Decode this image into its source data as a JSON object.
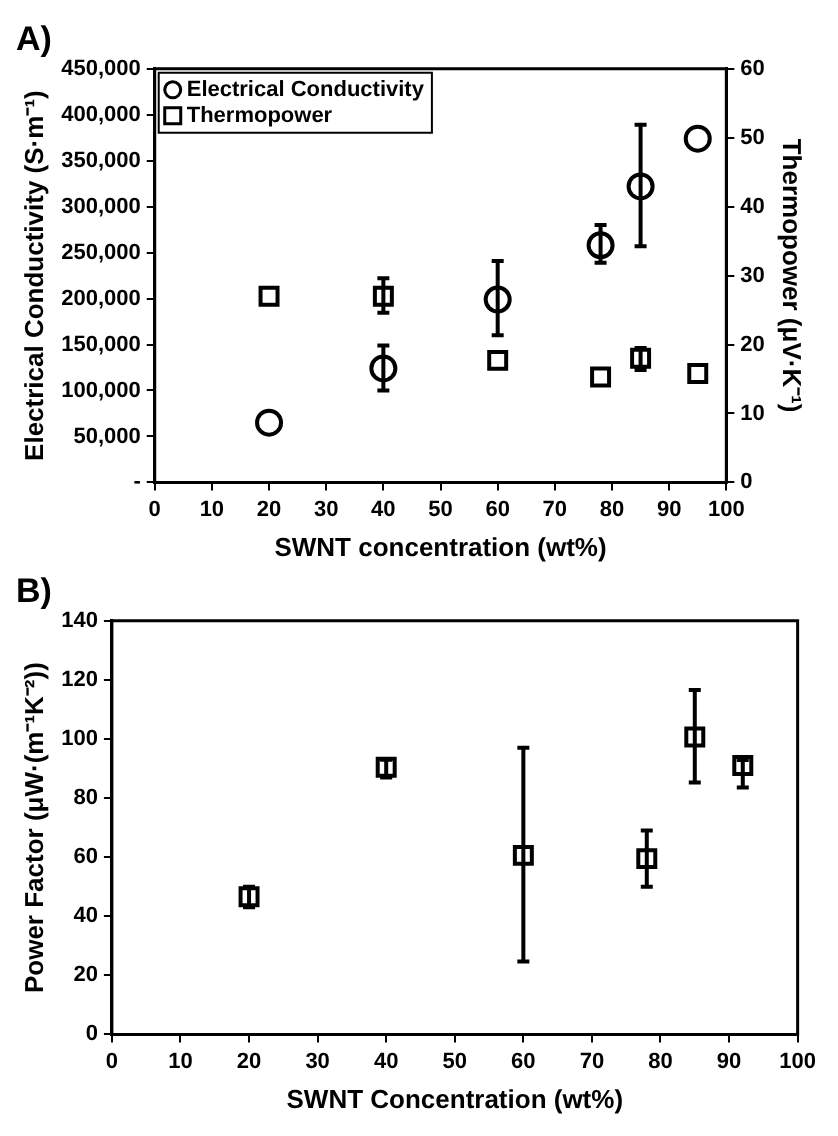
{
  "chart_data": [
    {
      "type": "scatter",
      "title": "A)",
      "xlabel": "SWNT concentration (wt%)",
      "ylabel": "Electrical Conductivity (S·m⁻¹)",
      "y2label": "Thermopower (μV·K⁻¹)",
      "legend": "top left",
      "grid": false,
      "xlim": [
        0,
        100
      ],
      "xticks": [
        0,
        10,
        20,
        30,
        40,
        50,
        60,
        70,
        80,
        90,
        100
      ],
      "ylim": [
        0,
        450000
      ],
      "yticks": [
        {
          "value": 0,
          "label": "-"
        },
        {
          "value": 50000,
          "label": "50,000"
        },
        {
          "value": 100000,
          "label": "100,000"
        },
        {
          "value": 150000,
          "label": "150,000"
        },
        {
          "value": 200000,
          "label": "200,000"
        },
        {
          "value": 250000,
          "label": "250,000"
        },
        {
          "value": 300000,
          "label": "300,000"
        },
        {
          "value": 350000,
          "label": "350,000"
        },
        {
          "value": 400000,
          "label": "400,000"
        },
        {
          "value": 450000,
          "label": "450,000"
        }
      ],
      "y2lim": [
        0,
        60
      ],
      "y2ticks": [
        0,
        10,
        20,
        30,
        40,
        50,
        60
      ],
      "series": [
        {
          "name": "Electrical Conductivity",
          "color": "#000000",
          "marker": "circle",
          "x": [
            20,
            40,
            60,
            78,
            85,
            95
          ],
          "values": [
            65000,
            124000,
            199000,
            258000,
            322000,
            374000
          ],
          "errors": [
            null,
            [
              100000,
              149000
            ],
            [
              160000,
              241000
            ],
            [
              239000,
              280000
            ],
            [
              257000,
              389000
            ],
            null
          ]
        },
        {
          "name": "Thermopower",
          "color": "#000000",
          "marker": "square",
          "axis": "y2",
          "x": [
            20,
            40,
            60,
            78,
            85,
            95
          ],
          "values": [
            27,
            27,
            17.7,
            15.3,
            18,
            15.8
          ],
          "errors": [
            null,
            [
              24.6,
              29.6
            ],
            null,
            null,
            [
              16.3,
              19.5
            ],
            null
          ]
        }
      ]
    },
    {
      "type": "scatter",
      "title": "B)",
      "xlabel": "SWNT Concentration (wt%)",
      "ylabel": "Power Factor (μW·(m⁻¹K⁻²))",
      "legend": false,
      "grid": false,
      "xlim": [
        0,
        100
      ],
      "xticks": [
        0,
        10,
        20,
        30,
        40,
        50,
        60,
        70,
        80,
        90,
        100
      ],
      "ylim": [
        0,
        140
      ],
      "yticks": [
        0,
        20,
        40,
        60,
        80,
        100,
        120,
        140
      ],
      "series": [
        {
          "color": "#000000",
          "marker": "square",
          "x": [
            20,
            40,
            60,
            78,
            85,
            92
          ],
          "values": [
            46.6,
            90.4,
            60.6,
            59.5,
            100.7,
            91
          ],
          "errors": [
            [
              43,
              50
            ],
            [
              87,
              93
            ],
            [
              24.7,
              97
            ],
            [
              50,
              69
            ],
            [
              85.3,
              116.6
            ],
            [
              83.6,
              92.9
            ]
          ]
        }
      ]
    }
  ]
}
